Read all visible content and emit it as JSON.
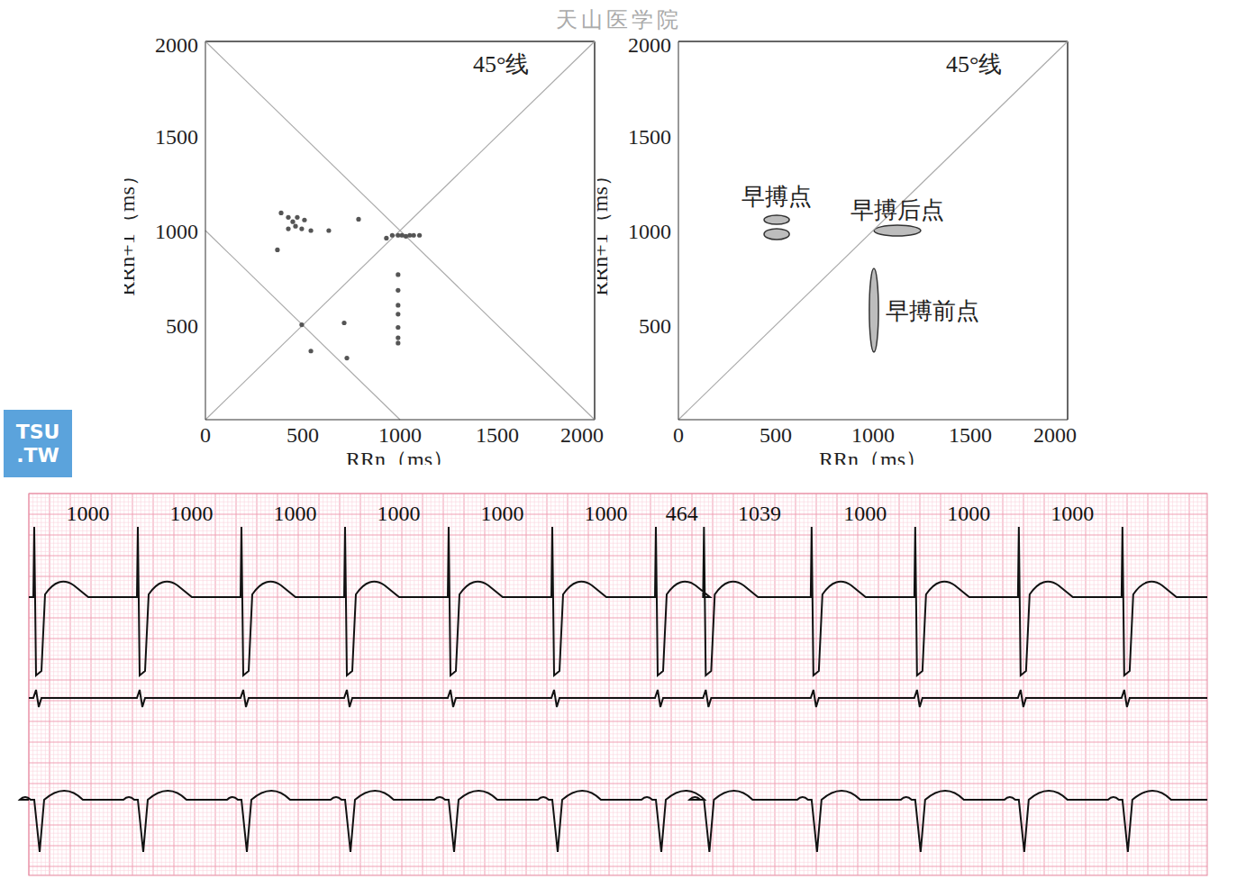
{
  "watermark": "天山医学院",
  "logo": [
    "TSU",
    ".TW"
  ],
  "chart_data": [
    {
      "type": "scatter",
      "xlabel": "RRn（ms）",
      "ylabel": "RRn+1（ms）",
      "annotation": "45°线",
      "xlim": [
        0,
        2000
      ],
      "ylim": [
        0,
        2000
      ],
      "xticks": [
        0,
        500,
        1000,
        1500,
        2000
      ],
      "yticks": [
        500,
        1000,
        1500,
        2000
      ],
      "grid": false,
      "color": "#555555",
      "marker": "circle",
      "lines": [
        [
          [
            0,
            0
          ],
          [
            2000,
            2000
          ]
        ],
        [
          [
            0,
            2000
          ],
          [
            2000,
            0
          ]
        ],
        [
          [
            0,
            1000
          ],
          [
            1000,
            0
          ]
        ]
      ],
      "points": [
        [
          930,
          960
        ],
        [
          960,
          975
        ],
        [
          990,
          975
        ],
        [
          1010,
          975
        ],
        [
          1030,
          970
        ],
        [
          1050,
          975
        ],
        [
          1070,
          975
        ],
        [
          1100,
          975
        ],
        [
          990,
          767
        ],
        [
          990,
          684
        ],
        [
          990,
          605
        ],
        [
          990,
          558
        ],
        [
          990,
          488
        ],
        [
          990,
          433
        ],
        [
          990,
          405
        ],
        [
          389,
          1093
        ],
        [
          426,
          1070
        ],
        [
          449,
          1047
        ],
        [
          472,
          1070
        ],
        [
          509,
          1056
        ],
        [
          495,
          1009
        ],
        [
          542,
          1000
        ],
        [
          463,
          1023
        ],
        [
          426,
          1009
        ],
        [
          634,
          1000
        ],
        [
          370,
          898
        ],
        [
          787,
          1060
        ],
        [
          495,
          502
        ],
        [
          542,
          363
        ],
        [
          713,
          512
        ],
        [
          727,
          326
        ]
      ]
    },
    {
      "type": "region",
      "xlabel": "RRn（ms）",
      "ylabel": "RRn+1（ms）",
      "annotation": "45°线",
      "xlim": [
        0,
        2000
      ],
      "ylim": [
        0,
        2000
      ],
      "xticks": [
        0,
        500,
        1000,
        1500,
        2000
      ],
      "yticks": [
        500,
        1000,
        1500,
        2000
      ],
      "grid": false,
      "color": "#bdbdbd",
      "lines": [
        [
          [
            0,
            0
          ],
          [
            2000,
            2000
          ]
        ]
      ],
      "regions": [
        {
          "label": "早搏点",
          "areas": [
            {
              "x1": 440,
              "x2": 570,
              "y1": 1033,
              "y2": 1081
            },
            {
              "x1": 440,
              "x2": 570,
              "y1": 952,
              "y2": 1010
            }
          ]
        },
        {
          "label": "早搏后点",
          "areas": [
            {
              "x1": 1005,
              "x2": 1245,
              "y1": 971,
              "y2": 1028
            }
          ]
        },
        {
          "label": "早搏前点",
          "areas": [
            {
              "x1": 981,
              "x2": 1028,
              "y1": 357,
              "y2": 800
            }
          ]
        }
      ]
    }
  ],
  "ecg": {
    "rr_intervals_ms": [
      1000,
      1000,
      1000,
      1000,
      1000,
      1000,
      464,
      1039,
      1000,
      1000,
      1000
    ]
  }
}
